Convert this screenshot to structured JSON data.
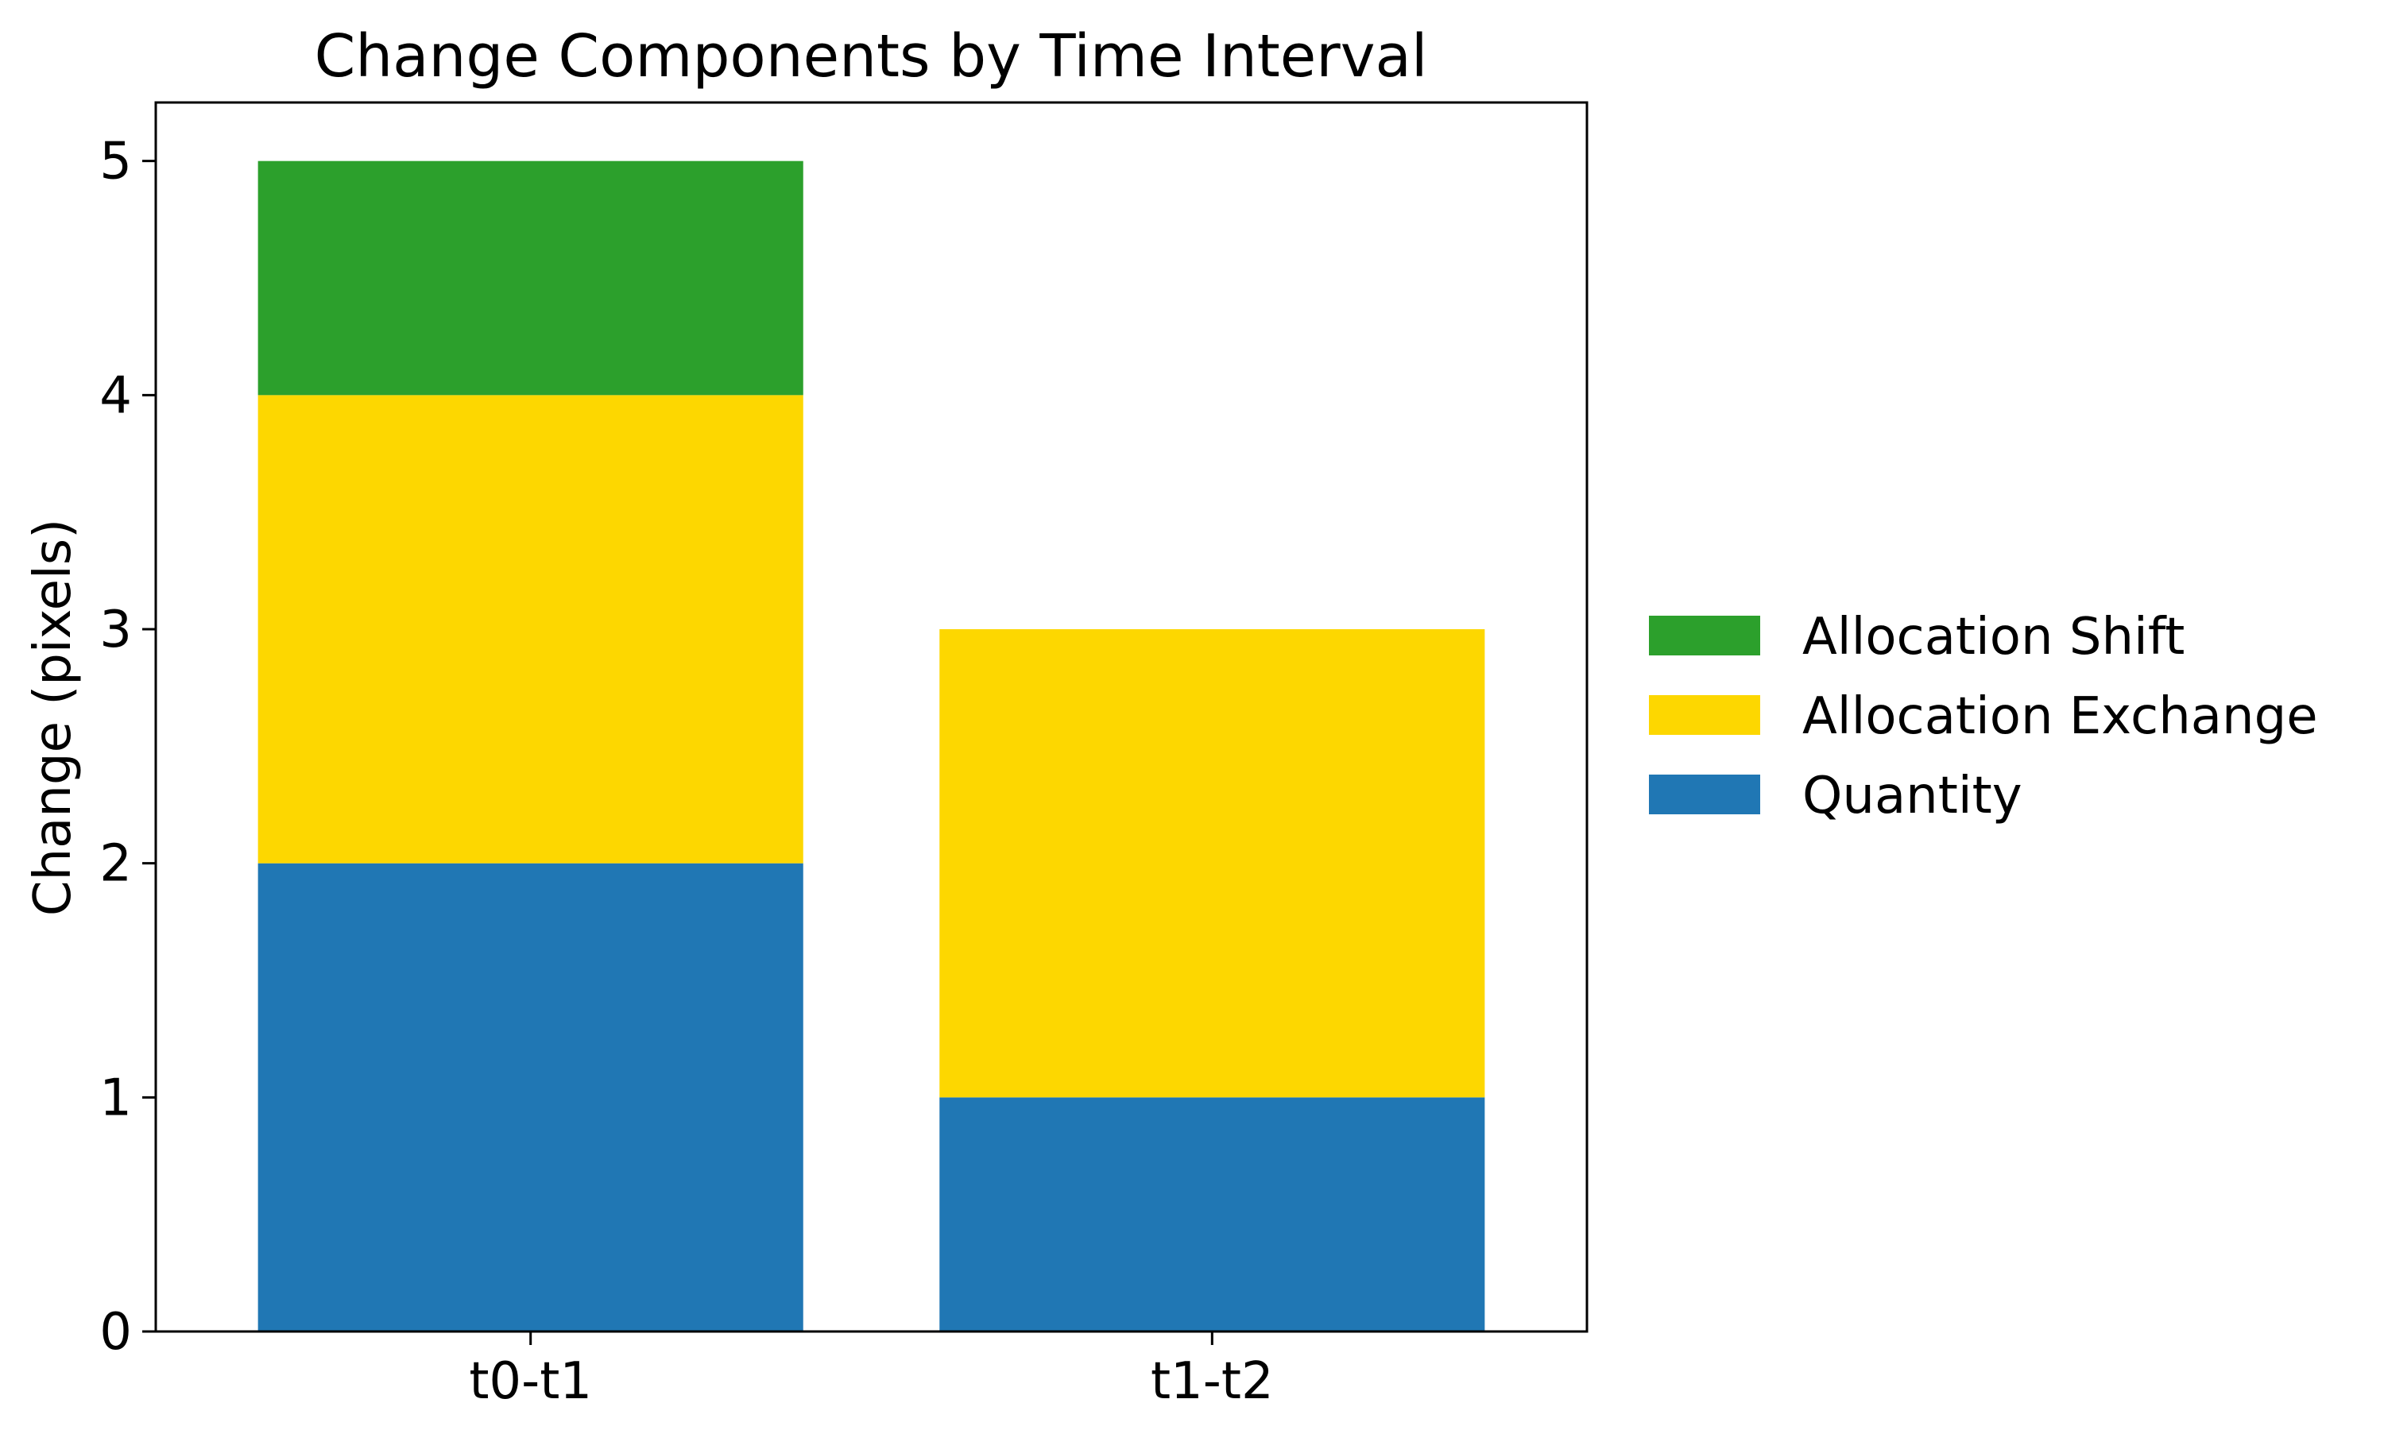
{
  "chart_data": {
    "type": "bar",
    "stacked": true,
    "title": "Change Components by Time Interval",
    "xlabel": "",
    "ylabel": "Change (pixels)",
    "categories": [
      "t0-t1",
      "t1-t2"
    ],
    "ylim": [
      0,
      5.25
    ],
    "yticks": [
      0,
      1,
      2,
      3,
      4,
      5
    ],
    "grid": false,
    "legend_position": "right",
    "series": [
      {
        "name": "Quantity",
        "values": [
          2,
          1
        ],
        "color": "#2077b4"
      },
      {
        "name": "Allocation Exchange",
        "values": [
          2,
          2
        ],
        "color": "#fdd700"
      },
      {
        "name": "Allocation Shift",
        "values": [
          1,
          0
        ],
        "color": "#2ca02c"
      }
    ],
    "legend_order": [
      "Allocation Shift",
      "Allocation Exchange",
      "Quantity"
    ]
  }
}
